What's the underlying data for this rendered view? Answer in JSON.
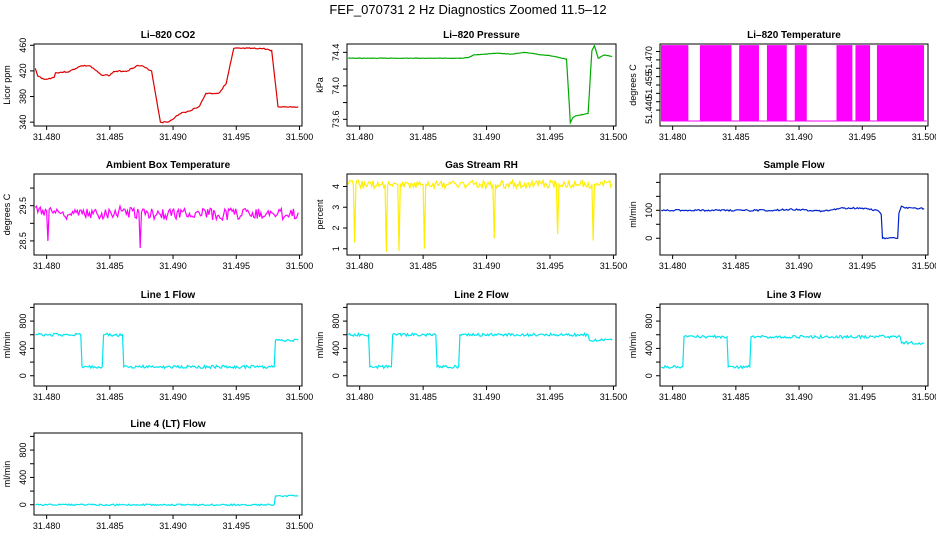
{
  "title": "FEF_070731  2 Hz Diagnostics Zoomed 11.5–12",
  "chart_data": [
    {
      "id": "co2",
      "type": "line",
      "title": "Li–820 CO2",
      "ylabel": "Licor ppm",
      "color": "#dd0000",
      "xlim": [
        31.479,
        31.5002
      ],
      "ylim": [
        334,
        462
      ],
      "yticks": [
        340,
        380,
        420,
        460
      ],
      "yrotate": true,
      "x": [
        31.4791,
        31.4793,
        31.4798,
        31.48,
        31.4806,
        31.4807,
        31.4818,
        31.4825,
        31.4828,
        31.4834,
        31.4843,
        31.485,
        31.4853,
        31.4864,
        31.4871,
        31.4875,
        31.4883,
        31.489,
        31.4896,
        31.4907,
        31.491,
        31.4921,
        31.4926,
        31.4936,
        31.4942,
        31.4948,
        31.4971,
        31.4978,
        31.4983,
        31.4999
      ],
      "y": [
        424,
        412,
        407,
        407,
        410,
        417,
        419,
        426,
        428,
        428,
        414,
        413,
        419,
        420,
        428,
        428,
        420,
        340,
        340,
        355,
        355,
        365,
        385,
        385,
        400,
        455,
        455,
        452,
        364,
        364
      ]
    },
    {
      "id": "pressure",
      "type": "line",
      "title": "Li–820 Pressure",
      "ylabel": "kPa",
      "color": "#00aa00",
      "xlim": [
        31.479,
        31.5002
      ],
      "ylim": [
        73.52,
        74.5
      ],
      "yticks": [
        73.6,
        73.8,
        74.0,
        74.2,
        74.4
      ],
      "ylabels": [
        "73.6",
        "",
        "74.0",
        "",
        "74.4"
      ],
      "yrotate": true,
      "x": [
        31.4791,
        31.4875,
        31.488,
        31.4886,
        31.489,
        31.4908,
        31.492,
        31.493,
        31.4943,
        31.495,
        31.4963,
        31.4966,
        31.4968,
        31.497,
        31.498,
        31.4983,
        31.4985,
        31.4988,
        31.4993,
        31.4999
      ],
      "y": [
        74.33,
        74.33,
        74.33,
        74.34,
        74.37,
        74.39,
        74.38,
        74.4,
        74.37,
        74.36,
        74.32,
        73.56,
        73.62,
        73.64,
        73.67,
        74.42,
        74.48,
        74.33,
        74.37,
        74.35
      ]
    },
    {
      "id": "temperature",
      "type": "line",
      "title": "Li–820 Temperature",
      "ylabel": "degrees C",
      "color": "#ff00ff",
      "xlim": [
        31.479,
        31.5002
      ],
      "ylim": [
        51.4305,
        51.4795
      ],
      "yticks": [
        51.44,
        51.455,
        51.47
      ],
      "ylabels": [
        "51.440",
        "51.455",
        "51.470"
      ],
      "minor_yticks": [
        51.445,
        51.45,
        51.46,
        51.465,
        51.475
      ],
      "yrotate": true,
      "bands": [
        [
          31.4791,
          31.4812
        ],
        [
          31.4822,
          31.4846
        ],
        [
          31.4853,
          31.4868
        ],
        [
          31.4875,
          31.489
        ],
        [
          31.4897,
          31.4906
        ],
        [
          31.493,
          31.4942
        ],
        [
          31.4945,
          31.4956
        ],
        [
          31.4962,
          31.4999
        ]
      ]
    },
    {
      "id": "ambient",
      "type": "line",
      "title": "Ambient Box Temperature",
      "ylabel": "degrees C",
      "color": "#ff00ff",
      "xlim": [
        31.479,
        31.5002
      ],
      "ylim": [
        28.1,
        30.4
      ],
      "yticks": [
        28.5,
        29.0,
        29.5,
        30.0
      ],
      "ylabels": [
        "28.5",
        "",
        "29.5",
        ""
      ],
      "yrotate": true,
      "x": [
        31.4791,
        31.48,
        31.4801,
        31.4802,
        31.481,
        31.483,
        31.486,
        31.4873,
        31.4874,
        31.4875,
        31.489,
        31.491,
        31.494,
        31.496,
        31.498,
        31.4999
      ],
      "y": [
        29.45,
        29.35,
        28.5,
        29.4,
        29.3,
        29.25,
        29.35,
        29.3,
        28.3,
        29.3,
        29.25,
        29.3,
        29.25,
        29.3,
        29.25,
        29.3
      ]
    },
    {
      "id": "rh",
      "type": "line",
      "title": "Gas Stream RH",
      "ylabel": "percent",
      "color": "#ffee00",
      "xlim": [
        31.479,
        31.5002
      ],
      "ylim": [
        0.7,
        4.6
      ],
      "yticks": [
        1,
        2,
        3,
        4
      ],
      "yrotate": true,
      "x": [
        31.4791,
        31.4795,
        31.4796,
        31.4797,
        31.482,
        31.4821,
        31.4822,
        31.483,
        31.4831,
        31.4832,
        31.485,
        31.4851,
        31.4852,
        31.4905,
        31.4906,
        31.4907,
        31.4955,
        31.4956,
        31.4957,
        31.4983,
        31.4984,
        31.4985,
        31.4999
      ],
      "y": [
        4.1,
        4.1,
        1.3,
        4.1,
        4.1,
        0.85,
        4.1,
        4.1,
        0.9,
        4.1,
        4.1,
        1.0,
        4.1,
        4.1,
        1.5,
        4.1,
        4.1,
        1.7,
        4.1,
        4.1,
        1.4,
        4.1,
        4.1
      ]
    },
    {
      "id": "sample",
      "type": "line",
      "title": "Sample Flow",
      "ylabel": "ml/min",
      "color": "#0022cc",
      "xlim": [
        31.479,
        31.5002
      ],
      "ylim": [
        -60,
        230
      ],
      "yticks": [
        0,
        50,
        100,
        150,
        200
      ],
      "ylabels": [
        "0",
        "",
        "100",
        "",
        ""
      ],
      "yrotate": true,
      "x": [
        31.4791,
        31.488,
        31.489,
        31.49,
        31.491,
        31.492,
        31.4935,
        31.495,
        31.4962,
        31.4965,
        31.4966,
        31.4978,
        31.4979,
        31.4981,
        31.4984,
        31.499,
        31.4999
      ],
      "y": [
        100,
        100,
        103,
        103,
        98,
        98,
        108,
        108,
        100,
        85,
        0,
        0,
        90,
        115,
        108,
        108,
        106
      ]
    },
    {
      "id": "line1",
      "type": "line",
      "title": "Line 1 Flow",
      "ylabel": "ml/min",
      "color": "#00e5ee",
      "xlim": [
        31.479,
        31.5002
      ],
      "ylim": [
        -150,
        1050
      ],
      "yticks": [
        0,
        200,
        400,
        600,
        800,
        1000
      ],
      "ylabels": [
        "0",
        "",
        "400",
        "",
        "800",
        ""
      ],
      "yrotate": true,
      "x": [
        31.4791,
        31.4827,
        31.4828,
        31.4844,
        31.4845,
        31.486,
        31.4861,
        31.498,
        31.4981,
        31.4999
      ],
      "y": [
        600,
        600,
        130,
        130,
        600,
        600,
        130,
        130,
        520,
        520
      ]
    },
    {
      "id": "line2",
      "type": "line",
      "title": "Line 2 Flow",
      "ylabel": "ml/min",
      "color": "#00e5ee",
      "xlim": [
        31.479,
        31.5002
      ],
      "ylim": [
        -150,
        1050
      ],
      "yticks": [
        0,
        200,
        400,
        600,
        800,
        1000
      ],
      "ylabels": [
        "0",
        "",
        "400",
        "",
        "800",
        ""
      ],
      "yrotate": true,
      "x": [
        31.4791,
        31.4807,
        31.4808,
        31.4825,
        31.4826,
        31.486,
        31.4861,
        31.4878,
        31.4879,
        31.498,
        31.4981,
        31.4999
      ],
      "y": [
        600,
        600,
        130,
        130,
        600,
        600,
        130,
        130,
        600,
        600,
        520,
        520
      ]
    },
    {
      "id": "line3",
      "type": "line",
      "title": "Line 3 Flow",
      "ylabel": "ml/min",
      "color": "#00e5ee",
      "xlim": [
        31.479,
        31.5002
      ],
      "ylim": [
        -150,
        1050
      ],
      "yticks": [
        0,
        200,
        400,
        600,
        800,
        1000
      ],
      "ylabels": [
        "0",
        "",
        "400",
        "",
        "800",
        ""
      ],
      "yrotate": true,
      "x": [
        31.4791,
        31.4808,
        31.4809,
        31.4843,
        31.4844,
        31.4861,
        31.4862,
        31.498,
        31.4981,
        31.4999
      ],
      "y": [
        130,
        130,
        570,
        570,
        130,
        130,
        570,
        570,
        480,
        480
      ]
    },
    {
      "id": "line4",
      "type": "line",
      "title": "Line 4 (LT) Flow",
      "ylabel": "ml/min",
      "color": "#00e5ee",
      "xlim": [
        31.479,
        31.5002
      ],
      "ylim": [
        -150,
        1050
      ],
      "yticks": [
        0,
        200,
        400,
        600,
        800,
        1000
      ],
      "ylabels": [
        "0",
        "",
        "400",
        "",
        "800",
        ""
      ],
      "yrotate": true,
      "x": [
        31.4791,
        31.498,
        31.4981,
        31.4999
      ],
      "y": [
        0,
        0,
        130,
        130
      ]
    }
  ],
  "xticks": [
    31.48,
    31.485,
    31.49,
    31.495,
    31.5
  ],
  "xlabels": [
    "31.480",
    "31.485",
    "31.490",
    "31.495",
    "31.500"
  ]
}
